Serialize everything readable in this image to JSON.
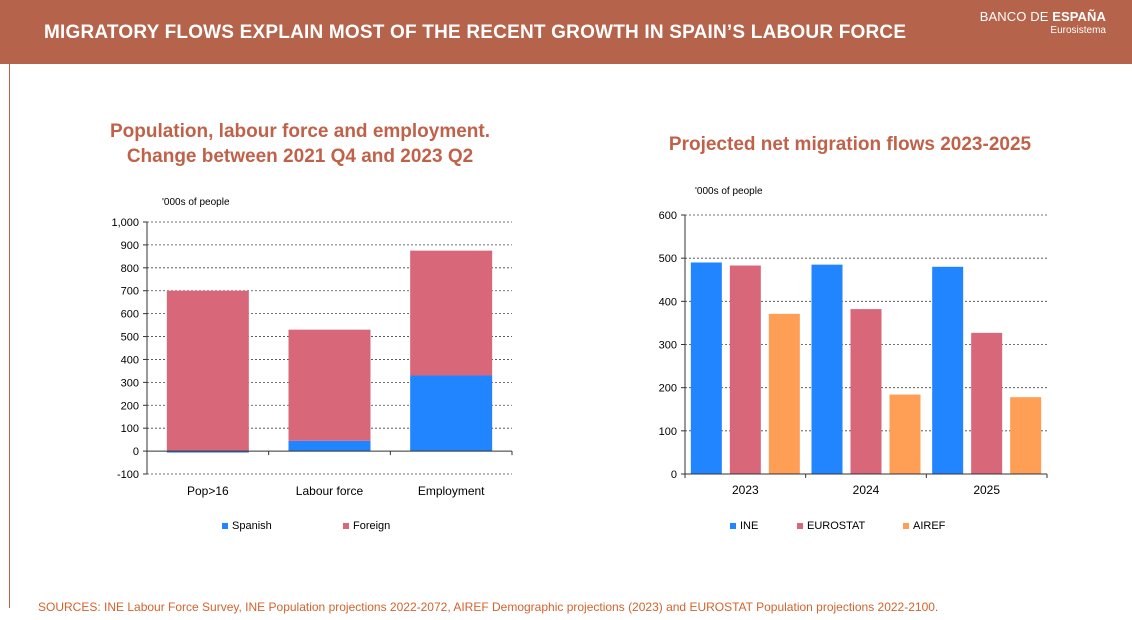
{
  "header": {
    "title": "MIGRATORY FLOWS EXPLAIN MOST OF THE RECENT GROWTH IN SPAIN’S LABOUR FORCE",
    "brand_regular": "BANCO DE ",
    "brand_bold": "ESPAÑA",
    "brand_sub": "Eurosistema"
  },
  "colors": {
    "header_bg": "#b5634a",
    "title_text": "#c0624a",
    "spanish": "#2185ff",
    "foreign": "#d9677a",
    "ine": "#2185ff",
    "eurostat": "#d9677a",
    "airef": "#ff9f55",
    "source_text": "#d4622c"
  },
  "left_chart": {
    "title_line1": "Population, labour force and employment.",
    "title_line2": "Change between 2021 Q4 and 2023 Q2",
    "unit": "'000s of people"
  },
  "right_chart": {
    "title": "Projected net migration flows 2023-2025",
    "unit": "'000s of people"
  },
  "chart_data": [
    {
      "type": "bar",
      "stacked": true,
      "title": "Population, labour force and employment. Change between 2021 Q4 and 2023 Q2",
      "ylabel": "'000s of people",
      "categories": [
        "Pop>16",
        "Labour force",
        "Employment"
      ],
      "series": [
        {
          "name": "Spanish",
          "values": [
            -5,
            45,
            330
          ]
        },
        {
          "name": "Foreign",
          "values": [
            700,
            485,
            545
          ]
        }
      ],
      "ylim": [
        -100,
        1000
      ],
      "yticks": [
        -100,
        0,
        100,
        200,
        300,
        400,
        500,
        600,
        700,
        800,
        900,
        1000
      ],
      "ytick_labels": [
        "-100",
        "0",
        "100",
        "200",
        "300",
        "400",
        "500",
        "600",
        "700",
        "800",
        "900",
        "1,000"
      ],
      "grid": true,
      "legend": "bottom"
    },
    {
      "type": "bar",
      "stacked": false,
      "title": "Projected net migration flows 2023-2025",
      "ylabel": "'000s of people",
      "categories": [
        "2023",
        "2024",
        "2025"
      ],
      "series": [
        {
          "name": "INE",
          "values": [
            490,
            485,
            480
          ]
        },
        {
          "name": "EUROSTAT",
          "values": [
            483,
            382,
            327
          ]
        },
        {
          "name": "AIREF",
          "values": [
            371,
            184,
            178
          ]
        }
      ],
      "ylim": [
        0,
        600
      ],
      "yticks": [
        0,
        100,
        200,
        300,
        400,
        500,
        600
      ],
      "ytick_labels": [
        "0",
        "100",
        "200",
        "300",
        "400",
        "500",
        "600"
      ],
      "grid": true,
      "legend": "bottom"
    }
  ],
  "footer": {
    "sources": "SOURCES: INE Labour Force Survey, INE Population projections 2022-2072, AIREF Demographic projections (2023) and EUROSTAT Population projections 2022-2100."
  }
}
